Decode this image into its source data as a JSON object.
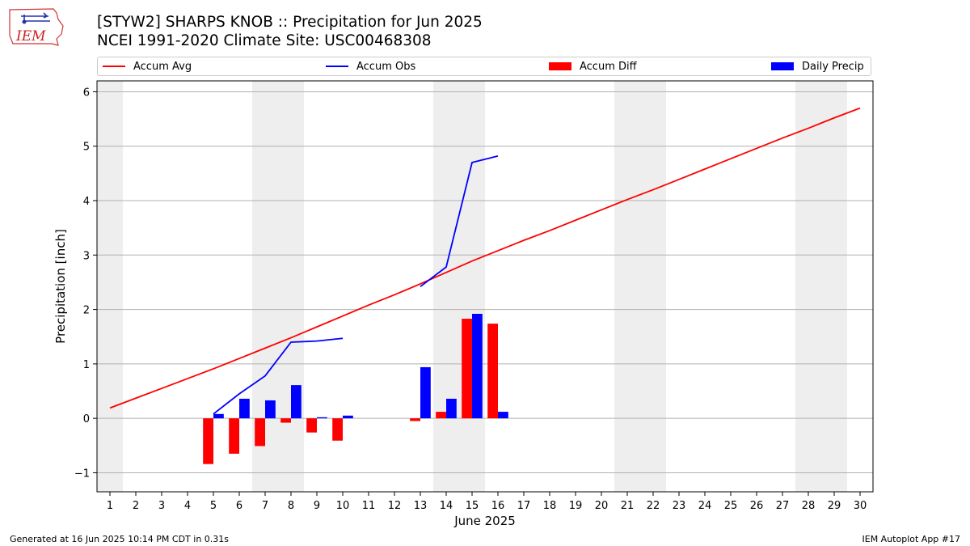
{
  "header": {
    "title_line1": "[STYW2] SHARPS KNOB :: Precipitation for Jun 2025",
    "title_line2": "NCEI 1991-2020 Climate Site: USC00468308"
  },
  "logo": {
    "text": "IEM"
  },
  "legend": {
    "accum_avg": "Accum Avg",
    "accum_obs": "Accum Obs",
    "accum_diff": "Accum Diff",
    "daily_precip": "Daily Precip"
  },
  "colors": {
    "accum_avg": "#ff0000",
    "accum_obs": "#0000ff",
    "accum_diff": "#ff0000",
    "daily_precip": "#0000ff",
    "weekend_shade": "#eeeeee",
    "grid": "#b0b0b0"
  },
  "chart_data": {
    "type": "bar",
    "xlabel": "June 2025",
    "ylabel": "Precipitation [inch]",
    "xlim": [
      0.5,
      30.5
    ],
    "ylim": [
      -1.35,
      6.2
    ],
    "yticks": [
      -1,
      0,
      1,
      2,
      3,
      4,
      5,
      6
    ],
    "ytick_labels": [
      "−1",
      "0",
      "1",
      "2",
      "3",
      "4",
      "5",
      "6"
    ],
    "xticks": [
      1,
      2,
      3,
      4,
      5,
      6,
      7,
      8,
      9,
      10,
      11,
      12,
      13,
      14,
      15,
      16,
      17,
      18,
      19,
      20,
      21,
      22,
      23,
      24,
      25,
      26,
      27,
      28,
      29,
      30
    ],
    "grid": "horizontal",
    "legend_position": "top",
    "weekend_days": [
      1,
      7,
      8,
      14,
      15,
      21,
      22,
      28,
      29
    ],
    "series": [
      {
        "name": "Accum Avg",
        "kind": "line",
        "x": [
          1,
          2,
          3,
          4,
          5,
          6,
          7,
          8,
          9,
          10,
          11,
          12,
          13,
          14,
          15,
          16,
          17,
          18,
          19,
          20,
          21,
          22,
          23,
          24,
          25,
          26,
          27,
          28,
          29,
          30
        ],
        "values": [
          0.19,
          0.37,
          0.55,
          0.73,
          0.91,
          1.1,
          1.29,
          1.48,
          1.68,
          1.88,
          2.08,
          2.27,
          2.47,
          2.68,
          2.89,
          3.08,
          3.27,
          3.45,
          3.64,
          3.83,
          4.02,
          4.2,
          4.39,
          4.58,
          4.77,
          4.96,
          5.15,
          5.33,
          5.52,
          5.7
        ]
      },
      {
        "name": "Accum Obs",
        "kind": "line",
        "segments": [
          {
            "x": [
              5,
              6,
              7,
              8,
              9,
              10
            ],
            "values": [
              0.08,
              0.45,
              0.78,
              1.4,
              1.42,
              1.47
            ]
          },
          {
            "x": [
              13,
              14,
              15,
              16
            ],
            "values": [
              2.42,
              2.78,
              4.7,
              4.82
            ]
          }
        ]
      },
      {
        "name": "Accum Diff",
        "kind": "bar",
        "x": [
          5,
          6,
          7,
          8,
          9,
          10,
          13,
          14,
          15,
          16
        ],
        "values": [
          -0.84,
          -0.65,
          -0.51,
          -0.08,
          -0.26,
          -0.41,
          -0.05,
          0.12,
          1.83,
          1.74
        ]
      },
      {
        "name": "Daily Precip",
        "kind": "bar",
        "x": [
          5,
          6,
          7,
          8,
          9,
          10,
          13,
          14,
          15,
          16
        ],
        "values": [
          0.08,
          0.36,
          0.33,
          0.61,
          0.02,
          0.05,
          0.94,
          0.36,
          1.92,
          0.12
        ]
      }
    ]
  },
  "footer": {
    "generated": "Generated at 16 Jun 2025 10:14 PM CDT in 0.31s",
    "app": "IEM Autoplot App #17"
  }
}
